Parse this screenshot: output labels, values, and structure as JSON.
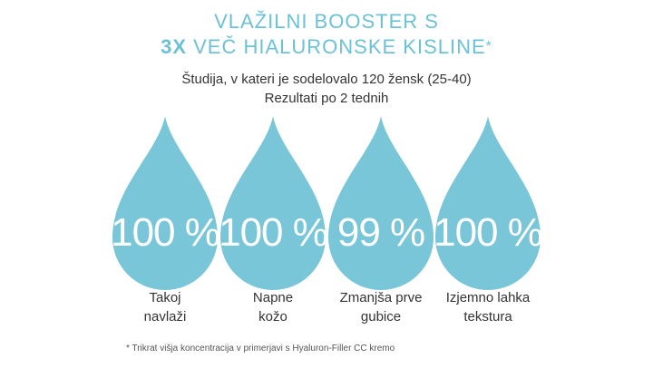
{
  "header": {
    "title_line1": "VLAŽILNI BOOSTER S",
    "title_bold": "3X",
    "title_rest": " VEČ HIALURONSKE KISLINE",
    "title_star": "*",
    "subtitle_line1": "Študija, v kateri je sodelovalo 120 žensk (25-40)",
    "subtitle_line2": "Rezultati po 2 tednih"
  },
  "colors": {
    "accent": "#6cc1d6",
    "drop": "#78c6d7",
    "text": "#333333"
  },
  "results": [
    {
      "value": "100 %",
      "label_line1": "Takoj",
      "label_line2": "navlaži"
    },
    {
      "value": "100 %",
      "label_line1": "Napne",
      "label_line2": "kožo"
    },
    {
      "value": "99 %",
      "label_line1": "Zmanjša prve",
      "label_line2": "gubice"
    },
    {
      "value": "100 %",
      "label_line1": "Izjemno lahka",
      "label_line2": "tekstura"
    }
  ],
  "footnote": "* Trikrat višja koncentracija v primerjavi s Hyaluron-Filler CC kremo"
}
